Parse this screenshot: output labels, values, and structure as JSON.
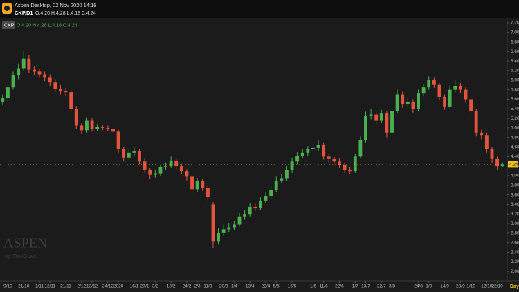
{
  "header": {
    "app": "Aspen Desktop, 02 Nov 2020 14:16",
    "symbol": "CKP,D1",
    "ohlc": "O:4.20 H:4.28 L:4.18 C:4.24"
  },
  "watermark": {
    "brand": "ASPEN",
    "by": "by ThaiQuest"
  },
  "chart_data": {
    "type": "candlestick",
    "legend": {
      "symbol": "CKP",
      "ohlc": "O:4.20 H:4.28 L:4.18 C:4.24"
    },
    "period": "Day",
    "categories": [
      null,
      "9/10",
      null,
      null,
      "21/10",
      null,
      null,
      "1/11",
      null,
      "12/11",
      null,
      null,
      "21/11",
      null,
      null,
      "2/12",
      null,
      "13/12",
      null,
      null,
      "24/12",
      null,
      "2020",
      null,
      null,
      "16/1",
      null,
      "27/1",
      null,
      "3/2",
      null,
      null,
      "13/2",
      null,
      null,
      "24/2",
      null,
      "2/3",
      null,
      "11/3",
      null,
      null,
      "20/3",
      null,
      "1/4",
      null,
      null,
      "13/4",
      null,
      null,
      "22/4",
      null,
      "5/5",
      null,
      null,
      "15/5",
      null,
      null,
      null,
      "1/6",
      null,
      "11/6",
      null,
      null,
      "22/6",
      null,
      null,
      "1/7",
      null,
      "13/7",
      null,
      null,
      "22/7",
      null,
      "3/8",
      null,
      null,
      null,
      null,
      "24/8",
      null,
      "1/9",
      null,
      null,
      "14/9",
      null,
      null,
      "23/9",
      null,
      "1/10",
      null,
      null,
      "12/10",
      null,
      "22/10",
      null
    ],
    "open": [
      5.55,
      5.62,
      5.85,
      6.1,
      6.25,
      6.45,
      6.22,
      6.18,
      6.12,
      6.05,
      5.95,
      5.82,
      5.78,
      5.75,
      5.4,
      5.05,
      4.95,
      5.15,
      4.98,
      5.02,
      5.0,
      4.98,
      4.92,
      4.55,
      4.38,
      4.48,
      4.52,
      4.3,
      4.12,
      4.02,
      4.05,
      4.18,
      4.2,
      4.32,
      4.2,
      4.1,
      3.98,
      3.72,
      3.9,
      3.75,
      3.4,
      2.62,
      2.8,
      2.88,
      2.92,
      2.98,
      3.15,
      3.2,
      3.35,
      3.32,
      3.48,
      3.58,
      3.7,
      3.9,
      3.95,
      4.12,
      4.3,
      4.42,
      4.48,
      4.55,
      4.58,
      4.65,
      4.4,
      4.35,
      4.3,
      4.22,
      4.12,
      4.1,
      4.4,
      4.75,
      5.25,
      5.28,
      5.15,
      5.3,
      4.9,
      5.35,
      5.7,
      5.5,
      5.55,
      5.4,
      5.72,
      5.85,
      6.0,
      5.9,
      5.65,
      5.45,
      5.8,
      5.88,
      5.8,
      5.6,
      5.35,
      4.9,
      4.85,
      4.55,
      4.35,
      4.2
    ],
    "high": [
      5.7,
      5.92,
      6.18,
      6.35,
      6.62,
      6.52,
      6.3,
      6.24,
      6.18,
      6.12,
      6.02,
      5.9,
      5.84,
      5.8,
      5.46,
      5.1,
      5.22,
      5.2,
      5.08,
      5.06,
      5.05,
      5.02,
      4.96,
      4.6,
      4.55,
      4.6,
      4.56,
      4.36,
      4.16,
      4.12,
      4.24,
      4.28,
      4.4,
      4.36,
      4.25,
      4.14,
      4.02,
      3.96,
      3.94,
      3.8,
      3.45,
      2.9,
      2.98,
      3.0,
      3.05,
      3.22,
      3.28,
      3.42,
      3.42,
      3.55,
      3.65,
      3.78,
      3.98,
      4.04,
      4.2,
      4.38,
      4.5,
      4.56,
      4.62,
      4.66,
      4.75,
      4.7,
      4.46,
      4.4,
      4.36,
      4.28,
      4.18,
      4.46,
      4.82,
      5.34,
      5.4,
      5.34,
      5.38,
      5.35,
      5.42,
      5.8,
      5.76,
      5.64,
      5.6,
      5.8,
      5.92,
      6.08,
      6.05,
      5.94,
      5.7,
      5.88,
      6.0,
      5.94,
      5.85,
      5.64,
      5.4,
      4.96,
      4.9,
      4.6,
      4.4,
      4.28
    ],
    "low": [
      5.48,
      5.55,
      5.8,
      6.02,
      6.2,
      6.15,
      6.1,
      6.05,
      5.98,
      5.88,
      5.76,
      5.7,
      5.66,
      5.34,
      4.98,
      4.88,
      4.9,
      4.92,
      4.94,
      4.95,
      4.93,
      4.86,
      4.48,
      4.3,
      4.34,
      4.42,
      4.24,
      4.06,
      3.94,
      3.96,
      4.0,
      4.12,
      4.16,
      4.14,
      4.04,
      3.9,
      3.6,
      3.66,
      3.68,
      3.48,
      2.48,
      2.56,
      2.74,
      2.82,
      2.86,
      2.94,
      3.08,
      3.15,
      3.26,
      3.28,
      3.42,
      3.52,
      3.66,
      3.84,
      3.9,
      4.06,
      4.24,
      4.36,
      4.42,
      4.48,
      4.52,
      4.34,
      4.28,
      4.24,
      4.16,
      4.06,
      4.04,
      4.06,
      4.36,
      4.7,
      5.18,
      5.08,
      5.1,
      4.8,
      4.86,
      5.3,
      5.42,
      5.44,
      5.32,
      5.36,
      5.66,
      5.8,
      5.84,
      5.58,
      5.38,
      5.42,
      5.74,
      5.72,
      5.52,
      5.28,
      4.82,
      4.76,
      4.48,
      4.26,
      4.12,
      4.18
    ],
    "close": [
      5.62,
      5.85,
      6.1,
      6.25,
      6.45,
      6.22,
      6.18,
      6.12,
      6.05,
      5.95,
      5.82,
      5.78,
      5.75,
      5.4,
      5.05,
      4.95,
      5.15,
      4.98,
      5.02,
      5.0,
      4.98,
      4.92,
      4.55,
      4.38,
      4.48,
      4.52,
      4.3,
      4.12,
      4.02,
      4.05,
      4.18,
      4.2,
      4.32,
      4.2,
      4.1,
      3.98,
      3.72,
      3.9,
      3.75,
      3.55,
      2.62,
      2.8,
      2.88,
      2.92,
      2.98,
      3.15,
      3.2,
      3.35,
      3.32,
      3.48,
      3.58,
      3.7,
      3.9,
      3.95,
      4.12,
      4.3,
      4.42,
      4.48,
      4.55,
      4.58,
      4.65,
      4.4,
      4.35,
      4.3,
      4.22,
      4.12,
      4.1,
      4.4,
      4.75,
      5.25,
      5.28,
      5.15,
      5.3,
      4.9,
      5.35,
      5.7,
      5.5,
      5.55,
      5.4,
      5.72,
      5.85,
      6.0,
      5.9,
      5.65,
      5.45,
      5.8,
      5.88,
      5.8,
      5.6,
      5.35,
      4.9,
      4.85,
      4.55,
      4.35,
      4.2,
      4.24
    ],
    "up_color": "#4caf50",
    "down_color": "#e2543d",
    "ylim": [
      1.8,
      7.3
    ],
    "yticks": [
      {
        "value": 2,
        "label": "2.00"
      },
      {
        "value": 2.2,
        "label": "2.20"
      },
      {
        "value": 2.4,
        "label": "2.40"
      },
      {
        "value": 2.6,
        "label": "2.60"
      },
      {
        "value": 2.8,
        "label": "2.80"
      },
      {
        "value": 3,
        "label": "3.00"
      },
      {
        "value": 3.2,
        "label": "3.20"
      },
      {
        "value": 3.4,
        "label": "3.40"
      },
      {
        "value": 3.6,
        "label": "3.60"
      },
      {
        "value": 3.8,
        "label": "3.80"
      },
      {
        "value": 4,
        "label": "4.00"
      },
      {
        "value": 4.2,
        "label": "4.20"
      },
      {
        "value": 4.4,
        "label": "4.40"
      },
      {
        "value": 4.6,
        "label": "4.60"
      },
      {
        "value": 4.8,
        "label": "4.80"
      },
      {
        "value": 5,
        "label": "5.00"
      },
      {
        "value": 5.2,
        "label": "5.20"
      },
      {
        "value": 5.4,
        "label": "5.40"
      },
      {
        "value": 5.6,
        "label": "5.60"
      },
      {
        "value": 5.8,
        "label": "5.80"
      },
      {
        "value": 6,
        "label": "6.00"
      },
      {
        "value": 6.2,
        "label": "6.20"
      },
      {
        "value": 6.4,
        "label": "6.40"
      },
      {
        "value": 6.6,
        "label": "6.60"
      },
      {
        "value": 6.8,
        "label": "6.80"
      },
      {
        "value": 7,
        "label": "7.00"
      },
      {
        "value": 7.2,
        "label": "7.20"
      }
    ],
    "grid": false
  }
}
